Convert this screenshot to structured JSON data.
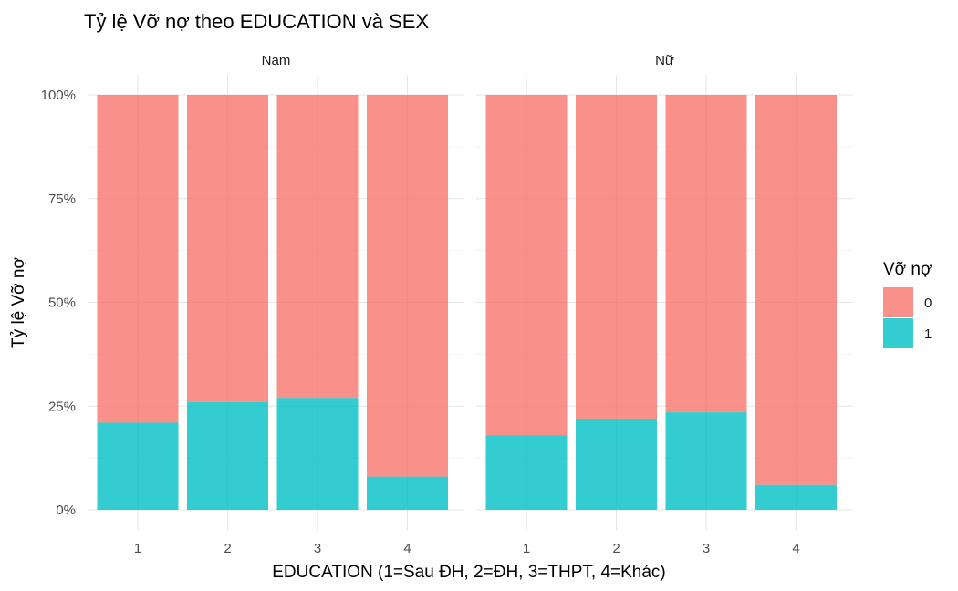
{
  "chart_data": {
    "type": "bar",
    "stacked": true,
    "position": "fill",
    "title": "Tỷ lệ Vỡ nợ theo EDUCATION và SEX",
    "xlabel": "EDUCATION (1=Sau ĐH, 2=ĐH, 3=THPT, 4=Khác)",
    "ylabel": "Tỷ lệ Vỡ nợ",
    "ylim": [
      0,
      1
    ],
    "y_ticks": [
      "0%",
      "25%",
      "50%",
      "75%",
      "100%"
    ],
    "grid": true,
    "legend": {
      "title": "Vỡ nợ",
      "placement": "right",
      "entries": [
        {
          "label": "0",
          "color": "#F8766D"
        },
        {
          "label": "1",
          "color": "#00BFC4"
        }
      ]
    },
    "facets": [
      {
        "name": "Nam",
        "categories": [
          "1",
          "2",
          "3",
          "4"
        ],
        "series": [
          {
            "name": "0",
            "values": [
              0.79,
              0.74,
              0.73,
              0.92
            ]
          },
          {
            "name": "1",
            "values": [
              0.21,
              0.26,
              0.27,
              0.08
            ]
          }
        ]
      },
      {
        "name": "Nữ",
        "categories": [
          "1",
          "2",
          "3",
          "4"
        ],
        "series": [
          {
            "name": "0",
            "values": [
              0.82,
              0.78,
              0.765,
              0.94
            ]
          },
          {
            "name": "1",
            "values": [
              0.18,
              0.22,
              0.235,
              0.06
            ]
          }
        ]
      }
    ]
  }
}
